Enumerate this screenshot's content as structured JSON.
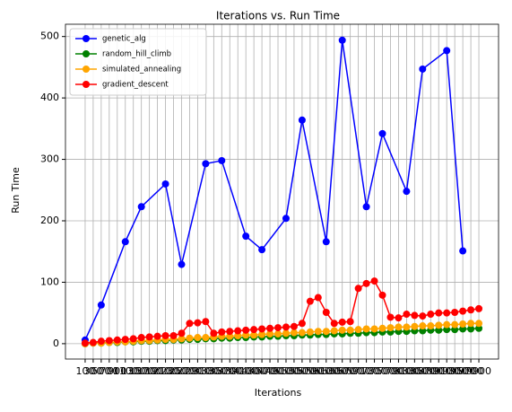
{
  "chart_data": {
    "type": "line",
    "title": "Iterations vs. Run Time",
    "x_label": "Iterations",
    "y_label": "Run Time",
    "categories": [
      "100",
      "300",
      "500",
      "700",
      "900",
      "1100",
      "1300",
      "1500",
      "1700",
      "1900",
      "2100",
      "2300",
      "2500",
      "2700",
      "2900",
      "3100",
      "3300",
      "3500",
      "3700",
      "3900",
      "4100",
      "4300",
      "4500",
      "4700",
      "4900",
      "5100",
      "5300",
      "5500",
      "5700",
      "5900",
      "6100",
      "6300",
      "6500",
      "6700",
      "6900",
      "7100",
      "7300",
      "7500",
      "7700",
      "7900",
      "8100",
      "8300",
      "8500",
      "8700",
      "8900",
      "9100",
      "9300",
      "9500",
      "9700",
      "9900"
    ],
    "series": [
      {
        "name": "genetic_alg",
        "color": "#0000ff",
        "x": [
          "100",
          "500",
          "1100",
          "1500",
          "2100",
          "2500",
          "3100",
          "3500",
          "4100",
          "4500",
          "5100",
          "5500",
          "6100",
          "6500",
          "7100",
          "7500",
          "8100",
          "8500",
          "9100",
          "9500"
        ],
        "values": [
          6,
          63,
          166,
          223,
          260,
          129,
          293,
          298,
          175,
          153,
          204,
          364,
          166,
          494,
          223,
          342,
          248,
          447,
          477,
          151
        ]
      },
      {
        "name": "random_hill_climb",
        "color": "#008000",
        "values": [
          0,
          1,
          1,
          2,
          2,
          3,
          3,
          4,
          4,
          5,
          5,
          6,
          6,
          7,
          7,
          8,
          8,
          9,
          9,
          10,
          10,
          11,
          11,
          12,
          12,
          13,
          13,
          14,
          14,
          15,
          15,
          16,
          16,
          17,
          17,
          18,
          18,
          19,
          19,
          20,
          20,
          21,
          21,
          22,
          22,
          23,
          23,
          24,
          24,
          25
        ]
      },
      {
        "name": "simulated_annealing",
        "color": "#ffa500",
        "values": [
          0,
          1,
          1,
          2,
          3,
          3,
          4,
          5,
          5,
          6,
          7,
          7,
          8,
          9,
          10,
          10,
          11,
          12,
          12,
          13,
          14,
          14,
          15,
          16,
          16,
          17,
          18,
          18,
          19,
          20,
          20,
          21,
          22,
          22,
          23,
          24,
          24,
          25,
          26,
          27,
          27,
          28,
          29,
          29,
          30,
          31,
          31,
          32,
          33,
          33
        ]
      },
      {
        "name": "gradient_descent",
        "color": "#ff0000",
        "values": [
          1,
          2,
          4,
          5,
          6,
          7,
          8,
          10,
          11,
          12,
          13,
          13,
          17,
          33,
          34,
          36,
          17,
          19,
          20,
          21,
          22,
          23,
          24,
          25,
          26,
          27,
          28,
          33,
          69,
          75,
          51,
          33,
          35,
          36,
          90,
          98,
          102,
          79,
          43,
          42,
          48,
          46,
          45,
          48,
          50,
          50,
          51,
          53,
          55,
          57
        ]
      }
    ],
    "ylim": [
      -25,
      520
    ],
    "yticks": [
      0,
      100,
      200,
      300,
      400,
      500
    ],
    "grid": true,
    "legend": "upper left"
  }
}
